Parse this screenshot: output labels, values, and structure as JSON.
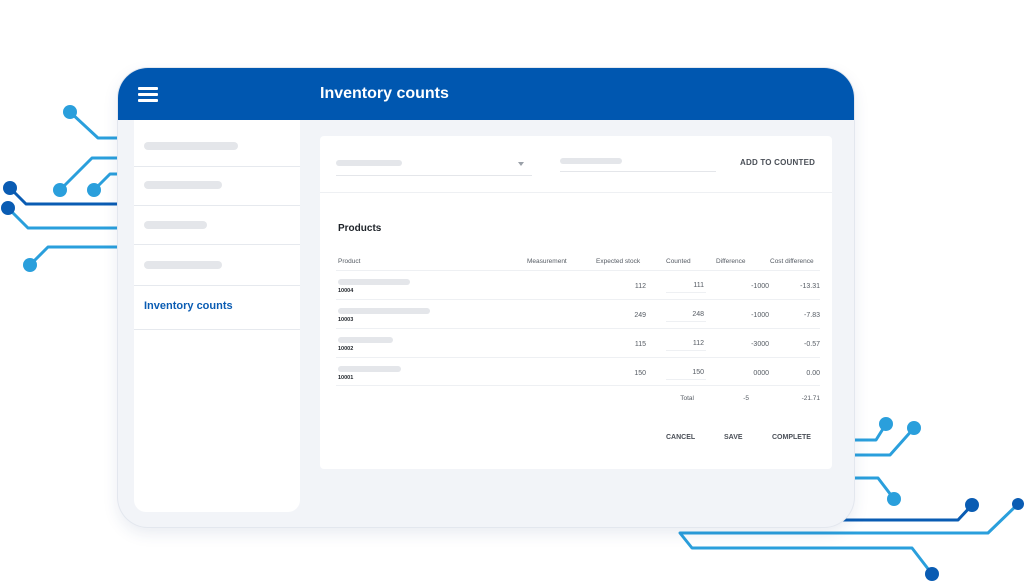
{
  "app": {
    "title": "Inventory counts"
  },
  "sidebar": {
    "active_item": "Inventory counts"
  },
  "toolbar": {
    "add_to_counted_label": "ADD TO COUNTED"
  },
  "products": {
    "title": "Products",
    "columns": [
      "Product",
      "Measurement",
      "Expected stock",
      "Counted",
      "Difference",
      "Cost difference"
    ],
    "rows": [
      {
        "id": "10004",
        "expected": "112",
        "counted": "111",
        "difference": "-1000",
        "cost_difference": "-13.31"
      },
      {
        "id": "10003",
        "expected": "249",
        "counted": "248",
        "difference": "-1000",
        "cost_difference": "-7.83"
      },
      {
        "id": "10002",
        "expected": "115",
        "counted": "112",
        "difference": "-3000",
        "cost_difference": "-0.57"
      },
      {
        "id": "10001",
        "expected": "150",
        "counted": "150",
        "difference": "0000",
        "cost_difference": "0.00"
      }
    ],
    "total_label": "Total",
    "total_difference": "-5",
    "total_cost_difference": "-21.71"
  },
  "actions": {
    "cancel": "CANCEL",
    "save": "SAVE",
    "complete": "COMPLETE"
  },
  "colors": {
    "brand": "#0057b0",
    "active_nav": "#0a5cb3",
    "circuit_light": "#2a9fdc",
    "circuit_dark": "#0a5cb3"
  }
}
